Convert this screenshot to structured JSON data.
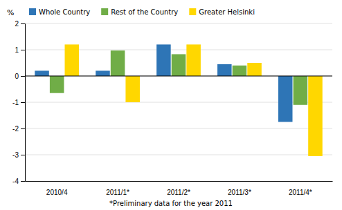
{
  "chart_data": {
    "type": "bar",
    "categories": [
      "2010/4",
      "2011/1*",
      "2011/2*",
      "2011/3*",
      "2011/4*"
    ],
    "series": [
      {
        "name": "Whole Country",
        "color": "#2E75B6",
        "values": [
          0.2,
          0.2,
          1.2,
          0.45,
          -1.75
        ]
      },
      {
        "name": "Rest of the Country",
        "color": "#70AD47",
        "values": [
          -0.65,
          0.97,
          0.83,
          0.4,
          -1.1
        ]
      },
      {
        "name": "Greater Helsinki",
        "color": "#FFD700",
        "values": [
          1.2,
          -1.0,
          1.2,
          0.5,
          -3.05
        ]
      }
    ],
    "ylabel": "%",
    "annotations": [
      "*Preliminary data for the year 2011"
    ],
    "ylim": [
      -4,
      2
    ],
    "yticks": [
      -4,
      -3,
      -2,
      -1,
      0,
      1,
      2
    ],
    "grid": true,
    "legend": "upper left"
  }
}
